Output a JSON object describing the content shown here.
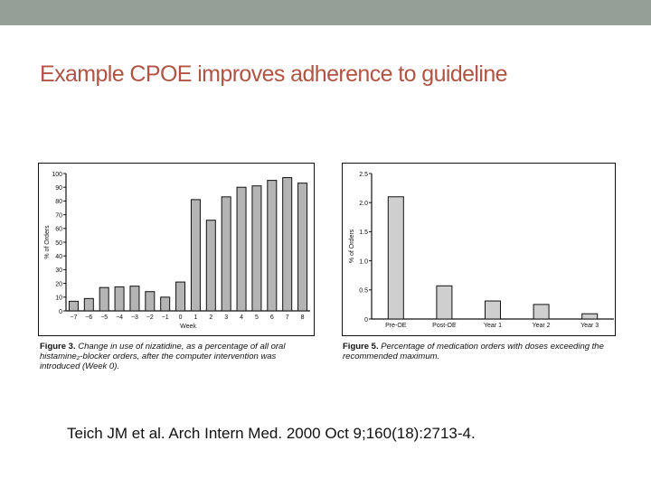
{
  "slide": {
    "title": "Example CPOE improves adherence to guideline",
    "citation": "Teich JM et al. Arch Intern Med. 2000 Oct 9;160(18):2713-4.",
    "colors": {
      "topbar": "#939f97",
      "title": "#b05444",
      "bar_fill_left": "#b4b4b4",
      "bar_fill_right": "#cfcfcf"
    }
  },
  "figure3": {
    "caption_label": "Figure 3.",
    "caption_text": "Change in use of nizatidine, as a percentage of all oral histamine₂-blocker orders, after the computer intervention was introduced (Week 0)."
  },
  "figure5": {
    "caption_label": "Figure 5.",
    "caption_text": "Percentage of medication orders with doses exceeding the recommended maximum."
  },
  "chart_data": [
    {
      "type": "bar",
      "title": "Figure 3",
      "xlabel": "Week",
      "ylabel": "% of Orders",
      "categories": [
        "−7",
        "−6",
        "−5",
        "−4",
        "−3",
        "−2",
        "−1",
        "0",
        "1",
        "2",
        "3",
        "4",
        "5",
        "6",
        "7",
        "8"
      ],
      "values": [
        7,
        9,
        17,
        17.5,
        18,
        14,
        10,
        21,
        81,
        66,
        83,
        90,
        91,
        95,
        97,
        93
      ],
      "ylim": [
        0,
        100
      ],
      "yticks": [
        "0",
        "10",
        "20",
        "30",
        "40",
        "50",
        "60",
        "70",
        "80",
        "90",
        "100"
      ],
      "grid": false,
      "legend": null
    },
    {
      "type": "bar",
      "title": "Figure 5",
      "xlabel": "",
      "ylabel": "% of Orders",
      "categories": [
        "Pre-OE",
        "Post-OE",
        "Year 1",
        "Year 2",
        "Year 3"
      ],
      "values": [
        2.1,
        0.57,
        0.31,
        0.25,
        0.09
      ],
      "ylim": [
        0,
        2.5
      ],
      "yticks": [
        "0",
        "0.5",
        "1.0",
        "1.5",
        "2.0",
        "2.5"
      ],
      "grid": false,
      "legend": null
    }
  ]
}
